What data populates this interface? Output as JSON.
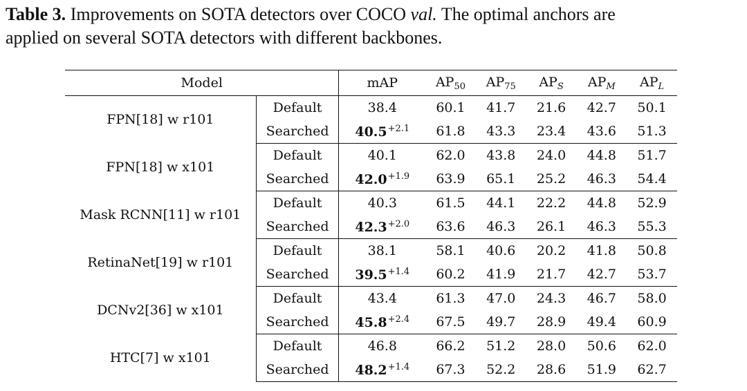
{
  "caption": {
    "label": "Table 3.",
    "text_a": "Improvements on SOTA detectors over COCO",
    "text_ital": "val.",
    "text_b": "The optimal anchors are",
    "line2": "applied on several SOTA detectors with different backbones."
  },
  "table": {
    "headers": {
      "model": "Model",
      "map": "mAP",
      "ap_base": "AP",
      "ap50_sub": "50",
      "ap75_sub": "75",
      "aps_sub": "S",
      "apm_sub": "M",
      "apl_sub": "L"
    },
    "rows": [
      {
        "model": "FPN[18] w r101",
        "default": {
          "label": "Default",
          "map": "38.4",
          "ap50": "60.1",
          "ap75": "41.7",
          "aps": "21.6",
          "apm": "42.7",
          "apl": "50.1"
        },
        "searched": {
          "label": "Searched",
          "map": "40.5",
          "gain": "+2.1",
          "ap50": "61.8",
          "ap75": "43.3",
          "aps": "23.4",
          "apm": "43.6",
          "apl": "51.3"
        }
      },
      {
        "model": "FPN[18] w x101",
        "default": {
          "label": "Default",
          "map": "40.1",
          "ap50": "62.0",
          "ap75": "43.8",
          "aps": "24.0",
          "apm": "44.8",
          "apl": "51.7"
        },
        "searched": {
          "label": "Searched",
          "map": "42.0",
          "gain": "+1.9",
          "ap50": "63.9",
          "ap75": "65.1",
          "aps": "25.2",
          "apm": "46.3",
          "apl": "54.4"
        }
      },
      {
        "model": "Mask RCNN[11] w r101",
        "default": {
          "label": "Default",
          "map": "40.3",
          "ap50": "61.5",
          "ap75": "44.1",
          "aps": "22.2",
          "apm": "44.8",
          "apl": "52.9"
        },
        "searched": {
          "label": "Searched",
          "map": "42.3",
          "gain": "+2.0",
          "ap50": "63.6",
          "ap75": "46.3",
          "aps": "26.1",
          "apm": "46.3",
          "apl": "55.3"
        }
      },
      {
        "model": "RetinaNet[19] w r101",
        "default": {
          "label": "Default",
          "map": "38.1",
          "ap50": "58.1",
          "ap75": "40.6",
          "aps": "20.2",
          "apm": "41.8",
          "apl": "50.8"
        },
        "searched": {
          "label": "Searched",
          "map": "39.5",
          "gain": "+1.4",
          "ap50": "60.2",
          "ap75": "41.9",
          "aps": "21.7",
          "apm": "42.7",
          "apl": "53.7"
        }
      },
      {
        "model": "DCNv2[36] w x101",
        "default": {
          "label": "Default",
          "map": "43.4",
          "ap50": "61.3",
          "ap75": "47.0",
          "aps": "24.3",
          "apm": "46.7",
          "apl": "58.0"
        },
        "searched": {
          "label": "Searched",
          "map": "45.8",
          "gain": "+2.4",
          "ap50": "67.5",
          "ap75": "49.7",
          "aps": "28.9",
          "apm": "49.4",
          "apl": "60.9"
        }
      },
      {
        "model": "HTC[7] w x101",
        "default": {
          "label": "Default",
          "map": "46.8",
          "ap50": "66.2",
          "ap75": "51.2",
          "aps": "28.0",
          "apm": "50.6",
          "apl": "62.0"
        },
        "searched": {
          "label": "Searched",
          "map": "48.2",
          "gain": "+1.4",
          "ap50": "67.3",
          "ap75": "52.2",
          "aps": "28.6",
          "apm": "51.9",
          "apl": "62.7"
        }
      }
    ]
  }
}
